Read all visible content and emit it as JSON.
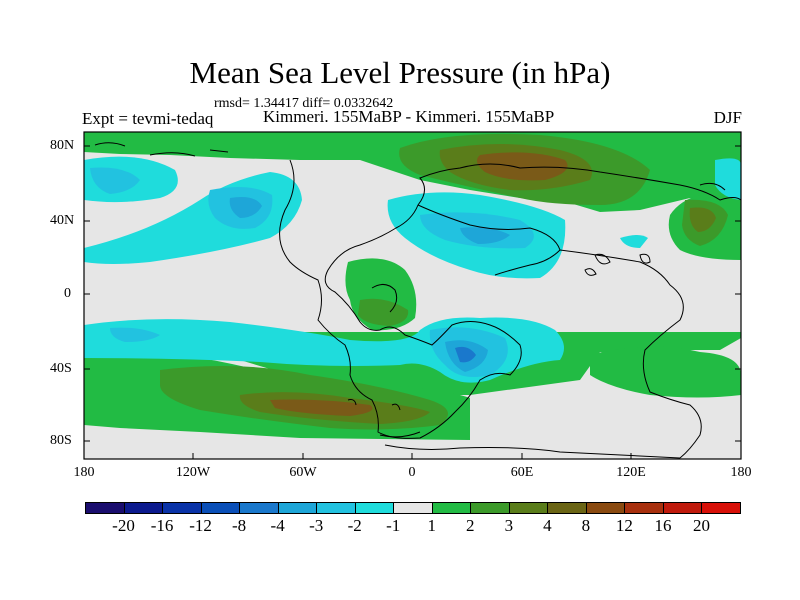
{
  "title": "Mean Sea Level Pressure (in hPa)",
  "stats": "rmsd= 1.34417 diff= 0.0332642",
  "left_label": "Expt = tevmi-tedaq",
  "center_label": "Kimmeri. 155MaBP - Kimmeri. 155MaBP",
  "right_label": "DJF",
  "lat_ticks": [
    "80N",
    "40N",
    "0",
    "40S",
    "80S"
  ],
  "lon_ticks": [
    "180",
    "120W",
    "60W",
    "0",
    "60E",
    "120E",
    "180"
  ],
  "colorbar": {
    "labels": [
      "-20",
      "-16",
      "-12",
      "-8",
      "-4",
      "-3",
      "-2",
      "-1",
      "1",
      "2",
      "3",
      "4",
      "8",
      "12",
      "16",
      "20"
    ],
    "colors": [
      "#1a0d6e",
      "#0c1a8e",
      "#0a33a8",
      "#0a4fb8",
      "#1a78cc",
      "#1ea6d8",
      "#22c2e0",
      "#1fdcdc",
      "#e6e6e6",
      "#22bb44",
      "#3c9a2a",
      "#5a7d1a",
      "#6b6515",
      "#8a4a10",
      "#a8300e",
      "#c01a0c",
      "#d81008"
    ]
  },
  "map": {
    "background": "#e6e6e6",
    "colors": {
      "pos1": "#22bb44",
      "pos2": "#3c9a2a",
      "pos3": "#5a7d1a",
      "pos4": "#7a5a18",
      "neg1": "#1fdcdc",
      "neg2": "#22c2e0",
      "neg3": "#1ea6d8",
      "neg4": "#1a78cc"
    }
  }
}
